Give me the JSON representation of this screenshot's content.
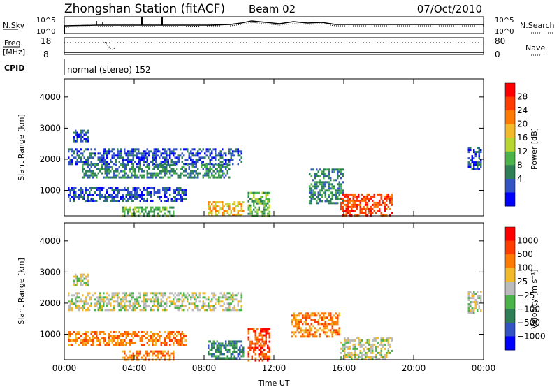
{
  "header": {
    "station_title": "Zhongshan Station (fitACF)",
    "beam": "Beam 02",
    "date": "07/Oct/2010"
  },
  "summary_panels": {
    "nsky_label": "N.Sky",
    "nsky_ticks": [
      "10^5",
      "10^0"
    ],
    "nsearch_label": "N.Search",
    "nsearch_ticks": [
      "10^5",
      "10^0"
    ],
    "freq_label_1": "Freq.",
    "freq_label_2": "[MHz]",
    "freq_ticks": [
      "18",
      "8"
    ],
    "nave_label": "Nave",
    "nave_ticks": [
      "80",
      "0"
    ],
    "cpid_label": "CPID",
    "cpid_value": "normal (stereo) 152"
  },
  "chart_data": [
    {
      "type": "heatmap",
      "name": "power-panel",
      "ylabel": "Slant Range [km]",
      "xlabel": "",
      "x_ticks": [
        "00:00",
        "04:00",
        "08:00",
        "12:00",
        "16:00",
        "20:00",
        "00:00"
      ],
      "xlim_hours": [
        0,
        24
      ],
      "ylim_km": [
        180,
        4580
      ],
      "y_ticks": [
        1000,
        2000,
        3000,
        4000
      ],
      "colorbar": {
        "label": "Power [dB]",
        "ticks": [
          "28",
          "24",
          "20",
          "16",
          "12",
          "8",
          "4"
        ],
        "colors": [
          "#0000ff",
          "#3355c4",
          "#2e7f55",
          "#4ab34a",
          "#b8d630",
          "#f2b92b",
          "#ff7a00",
          "#ff3d00",
          "#ff0000"
        ]
      },
      "echo_regions": [
        {
          "t0": 0.5,
          "t1": 1.4,
          "r0": 2600,
          "r1": 2950,
          "level": 1
        },
        {
          "t0": 0.2,
          "t1": 10.2,
          "r0": 1850,
          "r1": 2350,
          "level": 1
        },
        {
          "t0": 1.0,
          "t1": 9.5,
          "r0": 1400,
          "r1": 1850,
          "level": 2
        },
        {
          "t0": 0.2,
          "t1": 7.0,
          "r0": 650,
          "r1": 1100,
          "level": 1
        },
        {
          "t0": 3.3,
          "t1": 6.2,
          "r0": 180,
          "r1": 480,
          "level": 3
        },
        {
          "t0": 8.2,
          "t1": 10.3,
          "r0": 200,
          "r1": 650,
          "level": 5
        },
        {
          "t0": 10.5,
          "t1": 11.8,
          "r0": 180,
          "r1": 950,
          "level": 3
        },
        {
          "t0": 14.0,
          "t1": 16.0,
          "r0": 600,
          "r1": 1700,
          "level": 2
        },
        {
          "t0": 15.8,
          "t1": 18.8,
          "r0": 180,
          "r1": 900,
          "level": 7
        },
        {
          "t0": 23.1,
          "t1": 23.9,
          "r0": 1700,
          "r1": 2400,
          "level": 1
        }
      ]
    },
    {
      "type": "heatmap",
      "name": "velocity-panel",
      "ylabel": "Slant Range [km]",
      "xlabel": "Time UT",
      "x_ticks": [
        "00:00",
        "04:00",
        "08:00",
        "12:00",
        "16:00",
        "20:00",
        "00:00"
      ],
      "xlim_hours": [
        0,
        24
      ],
      "ylim_km": [
        180,
        4580
      ],
      "y_ticks": [
        1000,
        2000,
        3000,
        4000
      ],
      "colorbar": {
        "label": "Velocity [m s⁻¹]",
        "ticks": [
          "1000",
          "500",
          "100",
          "25",
          "−25",
          "−100",
          "−500",
          "−1000"
        ],
        "colors": [
          "#0000ff",
          "#3355c4",
          "#2e7f55",
          "#4ab34a",
          "#bbbbbb",
          "#f2b92b",
          "#ff7a00",
          "#ff3d00",
          "#ff0000"
        ]
      },
      "echo_regions": [
        {
          "t0": 0.5,
          "t1": 1.4,
          "r0": 2600,
          "r1": 2950,
          "level": 4
        },
        {
          "t0": 0.2,
          "t1": 10.2,
          "r0": 1750,
          "r1": 2350,
          "level": 4
        },
        {
          "t0": 0.2,
          "t1": 7.0,
          "r0": 650,
          "r1": 1100,
          "level": 6
        },
        {
          "t0": 3.3,
          "t1": 6.2,
          "r0": 180,
          "r1": 480,
          "level": 6
        },
        {
          "t0": 8.2,
          "t1": 10.3,
          "r0": 200,
          "r1": 800,
          "level": 2
        },
        {
          "t0": 10.5,
          "t1": 11.8,
          "r0": 180,
          "r1": 1200,
          "level": 7
        },
        {
          "t0": 13.0,
          "t1": 15.8,
          "r0": 900,
          "r1": 1700,
          "level": 6
        },
        {
          "t0": 15.8,
          "t1": 18.8,
          "r0": 180,
          "r1": 900,
          "level": 4
        },
        {
          "t0": 23.1,
          "t1": 23.9,
          "r0": 1700,
          "r1": 2400,
          "level": 4
        }
      ]
    }
  ]
}
